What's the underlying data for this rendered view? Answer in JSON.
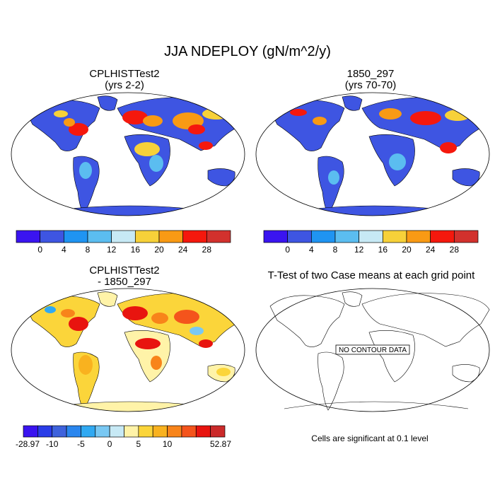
{
  "title": "JJA NDEPLOY (gN/m^2/y)",
  "panels": [
    {
      "title_line1": "CPLHISTTest2",
      "title_line2": "(yrs 2-2)"
    },
    {
      "title_line1": "1850_297",
      "title_line2": "(yrs 70-70)"
    },
    {
      "title_line1": "CPLHISTTest2",
      "title_line2": "- 1850_297"
    },
    {
      "title_line1": "T-Test of two Case means at each grid point",
      "title_line2": ""
    }
  ],
  "no_contour_label": "NO CONTOUR DATA",
  "significance_note": "Cells are significant at 0.1 level",
  "colorbar_abs": {
    "colors": [
      "#3a14f0",
      "#3e55e2",
      "#1f94f2",
      "#5bbdf0",
      "#c7e9f5",
      "#f7d139",
      "#f99a14",
      "#f5180d",
      "#d2312d"
    ],
    "labels": [
      "0",
      "4",
      "8",
      "12",
      "16",
      "20",
      "24",
      "28"
    ]
  },
  "colorbar_diff": {
    "colors": [
      "#3a14f0",
      "#2a3de8",
      "#3e62dc",
      "#2a86ee",
      "#30a9f2",
      "#79c8f3",
      "#c7e9f5",
      "#fff3a8",
      "#fbd53a",
      "#f9b21f",
      "#f8841a",
      "#f4541c",
      "#e8140f",
      "#cb2a2a"
    ],
    "labels": [
      "-28.97",
      "-10",
      "-5",
      "0",
      "5",
      "10",
      "52.87"
    ]
  },
  "chart_data": [
    {
      "type": "heatmap",
      "title": "CPLHISTTest2 (yrs 2-2)",
      "variable": "JJA NDEPLOY (gN/m^2/y)",
      "projection": "Robinson",
      "levels": [
        0,
        4,
        8,
        12,
        16,
        20,
        24,
        28
      ]
    },
    {
      "type": "heatmap",
      "title": "1850_297 (yrs 70-70)",
      "variable": "JJA NDEPLOY (gN/m^2/y)",
      "projection": "Robinson",
      "levels": [
        0,
        4,
        8,
        12,
        16,
        20,
        24,
        28
      ]
    },
    {
      "type": "heatmap",
      "title": "CPLHISTTest2 - 1850_297",
      "variable": "JJA NDEPLOY (gN/m^2/y)",
      "projection": "Robinson",
      "levels": [
        -28.97,
        -10,
        -5,
        0,
        5,
        10,
        52.87
      ]
    },
    {
      "type": "heatmap",
      "title": "T-Test of two Case means at each grid point",
      "projection": "Robinson",
      "annotation": "NO CONTOUR DATA",
      "note": "Cells are significant at 0.1 level"
    }
  ]
}
